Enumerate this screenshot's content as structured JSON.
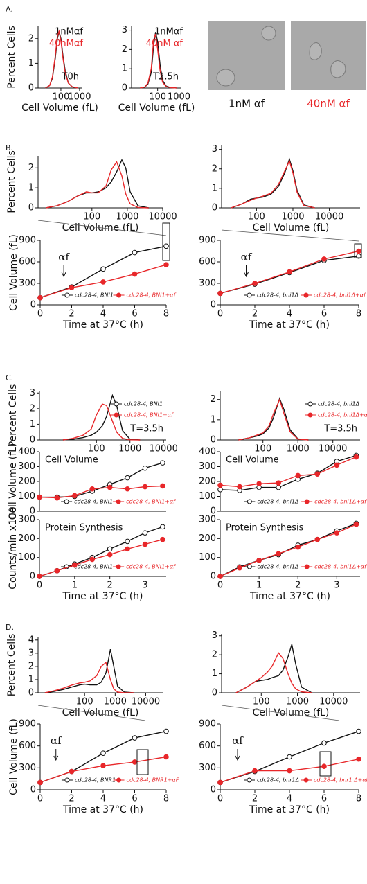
{
  "panel_labels": [
    "A.",
    "B.",
    "C.",
    "D."
  ],
  "image_panels": [
    {
      "caption": "1nM αf",
      "color": "#111111"
    },
    {
      "caption": "40nM αf",
      "color": "#e8272a"
    }
  ],
  "chart_data": [
    {
      "type": "line",
      "xscale": "log",
      "ylabel": "Percent Cells",
      "xlabel": "Cell Volume (fL)",
      "xlim": [
        6,
        1300
      ],
      "ylim": [
        0,
        2.5
      ],
      "xticks": [
        100,
        1000
      ],
      "yticks": [
        0,
        1,
        2
      ],
      "legend": "top-right",
      "note": "T0h",
      "markers": false,
      "x": [
        15,
        25,
        35,
        50,
        65,
        80,
        100,
        130,
        170,
        250,
        400,
        800
      ],
      "series": [
        {
          "name": "1nMαf",
          "color": "#111111",
          "values": [
            0,
            0.1,
            0.4,
            1.2,
            2.0,
            2.3,
            2.0,
            1.3,
            0.7,
            0.2,
            0.05,
            0
          ]
        },
        {
          "name": "40nMαf",
          "color": "#e8272a",
          "values": [
            0,
            0.1,
            0.45,
            1.3,
            2.1,
            2.3,
            1.9,
            1.2,
            0.6,
            0.2,
            0.05,
            0
          ]
        }
      ]
    },
    {
      "type": "line",
      "xscale": "log",
      "xlabel": "Cell Volume (fL)",
      "xlim": [
        6,
        1300
      ],
      "ylim": [
        0,
        3.2
      ],
      "xticks": [
        100,
        1000
      ],
      "yticks": [
        0,
        1,
        2,
        3
      ],
      "legend": "top-right",
      "note": "T2.5h",
      "markers": false,
      "x": [
        15,
        25,
        35,
        50,
        65,
        80,
        100,
        130,
        170,
        250,
        400,
        800
      ],
      "series": [
        {
          "name": "1nMαf",
          "color": "#111111",
          "values": [
            0,
            0.05,
            0.2,
            0.8,
            2.2,
            2.9,
            2.4,
            1.2,
            0.4,
            0.1,
            0.02,
            0
          ]
        },
        {
          "name": "40nM αf",
          "color": "#e8272a",
          "values": [
            0,
            0.05,
            0.25,
            1.0,
            2.5,
            2.8,
            2.0,
            0.9,
            0.3,
            0.08,
            0.02,
            0
          ]
        }
      ]
    },
    {
      "type": "line",
      "xscale": "log",
      "ylabel": "Percent Cells",
      "xlabel": "Cell Volume (fL)",
      "xlim": [
        3,
        10000
      ],
      "ylim": [
        0,
        2.6
      ],
      "xticks": [
        100,
        1000,
        10000
      ],
      "yticks": [
        0,
        1,
        2
      ],
      "markers": false,
      "x": [
        5,
        10,
        20,
        40,
        70,
        100,
        150,
        250,
        350,
        500,
        700,
        900,
        1200,
        2000,
        4000
      ],
      "series": [
        {
          "color": "#111111",
          "values": [
            0,
            0.1,
            0.3,
            0.6,
            0.75,
            0.75,
            0.8,
            1.0,
            1.3,
            1.8,
            2.4,
            2.0,
            0.8,
            0.1,
            0
          ]
        },
        {
          "color": "#e8272a",
          "values": [
            0,
            0.1,
            0.3,
            0.6,
            0.8,
            0.75,
            0.75,
            1.1,
            1.9,
            2.3,
            1.6,
            0.7,
            0.2,
            0.02,
            0
          ]
        }
      ]
    },
    {
      "type": "line",
      "xscale": "log",
      "xlabel": "Cell Volume (fL)",
      "xlim": [
        11,
        70000
      ],
      "ylim": [
        0,
        3.2
      ],
      "xticks": [
        100,
        1000,
        10000
      ],
      "yticks": [
        0,
        1,
        2,
        3
      ],
      "markers": false,
      "x": [
        20,
        40,
        70,
        100,
        150,
        250,
        400,
        600,
        800,
        1000,
        1300,
        2000,
        4000
      ],
      "series": [
        {
          "color": "#111111",
          "values": [
            0,
            0.2,
            0.45,
            0.5,
            0.55,
            0.7,
            1.1,
            1.8,
            2.5,
            1.9,
            0.9,
            0.15,
            0
          ]
        },
        {
          "color": "#e8272a",
          "values": [
            0,
            0.2,
            0.4,
            0.5,
            0.6,
            0.75,
            1.2,
            1.9,
            2.4,
            1.8,
            0.8,
            0.12,
            0
          ]
        }
      ]
    },
    {
      "type": "line",
      "ylabel": "Cell Volume (fL)",
      "xlabel": "Time at 37°C (h)",
      "xlim": [
        0,
        8
      ],
      "ylim": [
        0,
        900
      ],
      "xticks": [
        0,
        2,
        4,
        6,
        8
      ],
      "yticks": [
        0,
        300,
        600,
        900
      ],
      "legend": "bottom",
      "markers": true,
      "arrow": {
        "text": "αf",
        "x": 1.5
      },
      "x": [
        0,
        2,
        4,
        6,
        8
      ],
      "series": [
        {
          "name": "cdc28-4, BNI1",
          "color": "#111111",
          "marker": "open",
          "values": [
            100,
            250,
            500,
            730,
            820
          ]
        },
        {
          "name": "cdc28-4, BNI1+αf",
          "color": "#e8272a",
          "marker": "filled",
          "values": [
            100,
            240,
            320,
            430,
            560
          ]
        }
      ]
    },
    {
      "type": "line",
      "xlabel": "Time at 37°C (h)",
      "xlim": [
        0,
        8
      ],
      "ylim": [
        0,
        900
      ],
      "xticks": [
        0,
        2,
        4,
        6,
        8
      ],
      "yticks": [
        0,
        300,
        600,
        900
      ],
      "legend": "bottom",
      "markers": true,
      "arrow": {
        "text": "αf",
        "x": 1.5
      },
      "x": [
        0,
        2,
        4,
        6,
        8
      ],
      "series": [
        {
          "name": "cdc28-4, bni1Δ",
          "color": "#111111",
          "marker": "open",
          "values": [
            160,
            290,
            450,
            620,
            680
          ]
        },
        {
          "name": "cdc28-4, bni1Δ+αf",
          "color": "#e8272a",
          "marker": "filled",
          "values": [
            160,
            300,
            460,
            640,
            750
          ]
        }
      ]
    },
    {
      "type": "line",
      "xscale": "log",
      "ylabel": "Percent Cells",
      "xlim": [
        2,
        12000
      ],
      "ylim": [
        0,
        3.1
      ],
      "xticks": [
        100,
        1000,
        10000
      ],
      "yticks": [
        0,
        1,
        2,
        3
      ],
      "legend": "right",
      "note": "T=3.5h",
      "markers": false,
      "x": [
        10,
        20,
        40,
        70,
        100,
        150,
        200,
        300,
        400,
        600,
        1000,
        2000
      ],
      "series": [
        {
          "name": "cdc28-4, BNI1",
          "color": "#111111",
          "marker": "open",
          "values": [
            0,
            0.05,
            0.15,
            0.3,
            0.5,
            0.9,
            1.5,
            2.85,
            2.2,
            0.6,
            0.05,
            0
          ]
        },
        {
          "name": "cdc28-4, BNI1+αf",
          "color": "#e8272a",
          "marker": "filled",
          "values": [
            0,
            0.1,
            0.3,
            0.7,
            1.6,
            2.3,
            2.2,
            1.2,
            0.5,
            0.1,
            0.01,
            0
          ]
        }
      ]
    },
    {
      "type": "line",
      "xscale": "log",
      "xlim": [
        6,
        60000
      ],
      "ylim": [
        0,
        2.4
      ],
      "xticks": [
        100,
        1000,
        10000
      ],
      "yticks": [
        0,
        1,
        2
      ],
      "legend": "right",
      "note": "T=3.5h",
      "markers": false,
      "x": [
        20,
        40,
        70,
        100,
        150,
        200,
        300,
        400,
        600,
        1000,
        2000
      ],
      "series": [
        {
          "name": "cdc28-4, bni1Δ",
          "color": "#111111",
          "marker": "open",
          "values": [
            0,
            0.1,
            0.2,
            0.3,
            0.6,
            1.1,
            2.05,
            1.5,
            0.5,
            0.05,
            0
          ]
        },
        {
          "name": "cdc28-4, bni1Δ+αf",
          "color": "#e8272a",
          "marker": "filled",
          "values": [
            0,
            0.1,
            0.25,
            0.35,
            0.7,
            1.3,
            2.0,
            1.3,
            0.4,
            0.04,
            0
          ]
        }
      ]
    },
    {
      "type": "line",
      "ylabel": "Cell Volume (fL)",
      "xlim": [
        0,
        3.6
      ],
      "ylim": [
        0,
        400
      ],
      "yticks": [
        0,
        100,
        200,
        300,
        400
      ],
      "legend": "bottom",
      "note": "Cell Volume",
      "markers": true,
      "x": [
        0,
        0.5,
        1,
        1.5,
        2,
        2.5,
        3,
        3.5
      ],
      "series": [
        {
          "name": "cdc28-4, BNI1",
          "color": "#111111",
          "marker": "open",
          "values": [
            95,
            95,
            100,
            135,
            180,
            225,
            290,
            325
          ]
        },
        {
          "name": "cdc28-4, BNI1+αf",
          "color": "#e8272a",
          "marker": "filled",
          "values": [
            95,
            90,
            105,
            150,
            160,
            150,
            165,
            170
          ]
        }
      ]
    },
    {
      "type": "line",
      "xlim": [
        0,
        3.6
      ],
      "ylim": [
        0,
        400
      ],
      "yticks": [
        0,
        100,
        200,
        300,
        400
      ],
      "legend": "bottom",
      "note": "Cell Volume",
      "markers": true,
      "x": [
        0,
        0.5,
        1,
        1.5,
        2,
        2.5,
        3,
        3.5
      ],
      "series": [
        {
          "name": "cdc28-4, bni1Δ",
          "color": "#111111",
          "marker": "open",
          "values": [
            145,
            140,
            160,
            160,
            215,
            255,
            335,
            375
          ]
        },
        {
          "name": "cdc28-4, bni1Δ+αf",
          "color": "#e8272a",
          "marker": "filled",
          "values": [
            175,
            165,
            185,
            190,
            240,
            250,
            310,
            365
          ]
        }
      ]
    },
    {
      "type": "line",
      "ylabel": "Counts/min x100",
      "xlabel": "Time at 37°C (h)",
      "xlim": [
        0,
        3.6
      ],
      "ylim": [
        0,
        300
      ],
      "xticks": [
        0,
        1,
        2,
        3
      ],
      "yticks": [
        0,
        100,
        200,
        300
      ],
      "legend": "bottom",
      "note": "Protein Synthesis",
      "markers": true,
      "x": [
        0,
        0.5,
        1,
        1.5,
        2,
        2.5,
        3,
        3.5
      ],
      "series": [
        {
          "name": "cdc28-4, BNI1",
          "color": "#111111",
          "marker": "open",
          "values": [
            0,
            30,
            65,
            100,
            145,
            185,
            230,
            262
          ]
        },
        {
          "name": "cdc28-4, BNI1+αf",
          "color": "#e8272a",
          "marker": "filled",
          "values": [
            0,
            30,
            60,
            90,
            115,
            145,
            170,
            195
          ]
        }
      ]
    },
    {
      "type": "line",
      "xlabel": "Time at 37°C (h)",
      "xlim": [
        0,
        3.6
      ],
      "ylim": [
        0,
        300
      ],
      "xticks": [
        0,
        1,
        2,
        3
      ],
      "yticks": [
        0,
        100,
        200,
        300
      ],
      "legend": "bottom",
      "note": "Protein Synthesis",
      "markers": true,
      "x": [
        0,
        0.5,
        1,
        1.5,
        2,
        2.5,
        3,
        3.5
      ],
      "series": [
        {
          "name": "cdc28-4, bni1Δ",
          "color": "#111111",
          "marker": "open",
          "values": [
            0,
            50,
            85,
            115,
            165,
            195,
            240,
            280
          ]
        },
        {
          "name": "cdc28-4, bni1Δ+αf",
          "color": "#e8272a",
          "marker": "filled",
          "values": [
            0,
            45,
            85,
            120,
            155,
            195,
            230,
            275
          ]
        }
      ]
    },
    {
      "type": "line",
      "xscale": "log",
      "ylabel": "Percent Cells",
      "xlabel": "Cell Volume (fL)",
      "xlim": [
        3,
        36000
      ],
      "ylim": [
        0,
        4.2
      ],
      "xticks": [
        100,
        1000,
        10000
      ],
      "yticks": [
        0,
        1,
        2,
        3,
        4
      ],
      "markers": false,
      "x": [
        5,
        10,
        20,
        40,
        70,
        100,
        150,
        250,
        350,
        500,
        700,
        900,
        1200,
        2000,
        4000
      ],
      "series": [
        {
          "color": "#111111",
          "values": [
            0,
            0.1,
            0.25,
            0.45,
            0.6,
            0.65,
            0.6,
            0.6,
            0.8,
            1.5,
            3.3,
            2.0,
            0.5,
            0.05,
            0
          ]
        },
        {
          "color": "#e8272a",
          "values": [
            0,
            0.15,
            0.35,
            0.6,
            0.75,
            0.8,
            0.9,
            1.3,
            2.0,
            2.3,
            1.0,
            0.3,
            0.05,
            0,
            0
          ]
        }
      ]
    },
    {
      "type": "line",
      "xscale": "log",
      "xlabel": "Cell Volume (fL)",
      "xlim": [
        8,
        54000
      ],
      "ylim": [
        0,
        3.1
      ],
      "xticks": [
        100,
        1000,
        10000
      ],
      "yticks": [
        0,
        1,
        2,
        3
      ],
      "markers": false,
      "x": [
        20,
        40,
        70,
        100,
        150,
        200,
        300,
        400,
        550,
        700,
        900,
        1300,
        2500
      ],
      "series": [
        {
          "color": "#111111",
          "values": [
            0,
            0.3,
            0.6,
            0.65,
            0.7,
            0.8,
            0.9,
            1.2,
            1.9,
            2.55,
            1.5,
            0.3,
            0
          ]
        },
        {
          "color": "#e8272a",
          "values": [
            0,
            0.3,
            0.6,
            0.8,
            1.1,
            1.4,
            2.1,
            1.8,
            1.0,
            0.5,
            0.2,
            0.05,
            0
          ]
        }
      ]
    },
    {
      "type": "line",
      "ylabel": "Cell Volume (fL)",
      "xlabel": "Time at 37°C (h)",
      "xlim": [
        0,
        8
      ],
      "ylim": [
        0,
        900
      ],
      "xticks": [
        0,
        2,
        4,
        6,
        8
      ],
      "yticks": [
        0,
        300,
        600,
        900
      ],
      "legend": "bottom",
      "markers": true,
      "arrow": {
        "text": "αf",
        "x": 1
      },
      "x": [
        0,
        2,
        4,
        6,
        8
      ],
      "series": [
        {
          "name": "cdc28-4, BNR1",
          "color": "#111111",
          "marker": "open",
          "values": [
            100,
            250,
            500,
            710,
            800
          ]
        },
        {
          "name": "cdc28-4, BNR1+αF",
          "color": "#e8272a",
          "marker": "filled",
          "values": [
            100,
            250,
            330,
            380,
            450
          ]
        }
      ]
    },
    {
      "type": "line",
      "xlabel": "Time at 37°C (h)",
      "xlim": [
        0,
        8
      ],
      "ylim": [
        0,
        900
      ],
      "xticks": [
        0,
        2,
        4,
        6,
        8
      ],
      "yticks": [
        0,
        300,
        600,
        900
      ],
      "legend": "bottom",
      "markers": true,
      "arrow": {
        "text": "αf",
        "x": 1
      },
      "x": [
        0,
        2,
        4,
        6,
        8
      ],
      "series": [
        {
          "name": "cdc28-4, bnr1Δ",
          "color": "#111111",
          "marker": "open",
          "values": [
            100,
            250,
            450,
            640,
            800
          ]
        },
        {
          "name": "cdc28-4, bnr1 Δ+αF",
          "color": "#e8272a",
          "marker": "filled",
          "values": [
            100,
            260,
            260,
            320,
            420
          ]
        }
      ]
    }
  ]
}
